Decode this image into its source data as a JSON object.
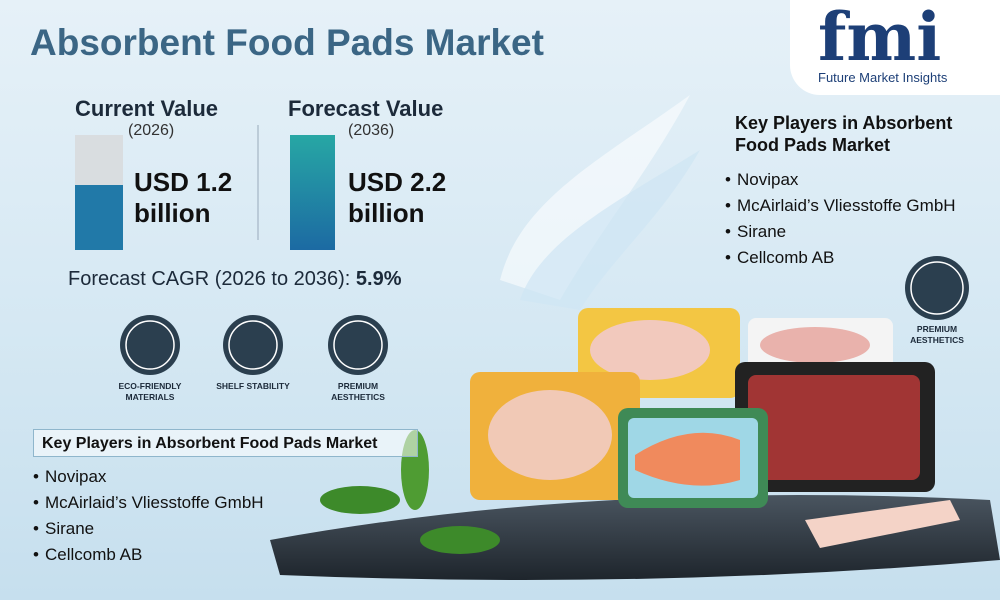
{
  "header": {
    "title": "Absorbent Food Pads Market",
    "logo": {
      "mark": "fmi",
      "name": "Future Market Insights"
    }
  },
  "current": {
    "label": "Current Value",
    "year": "(2026)",
    "value": "USD 1.2 billion"
  },
  "forecast": {
    "label": "Forecast Value",
    "year": "(2036)",
    "value": "USD 2.2 billion"
  },
  "cagr": {
    "label": "Forecast CAGR (2026 to 2036):",
    "value": "5.9%"
  },
  "features": [
    "ECO-FRIENDLY MATERIALS",
    "SHELF STABILITY",
    "PREMIUM AESTHETICS"
  ],
  "players_left": {
    "heading": "Key Players in Absorbent Food Pads Market",
    "items": [
      "Novipax",
      "McAirlaid’s Vliesstoffe GmbH",
      "Sirane",
      "Cellcomb AB"
    ]
  },
  "players_right": {
    "heading": "Key Players in Absorbent Food Pads Market",
    "items": [
      "Novipax",
      "McAirlaid’s Vliesstoffe GmbH",
      "Sirane",
      "Cellcomb AB"
    ]
  },
  "right_badge": "PREMIUM AESTHETICS"
}
